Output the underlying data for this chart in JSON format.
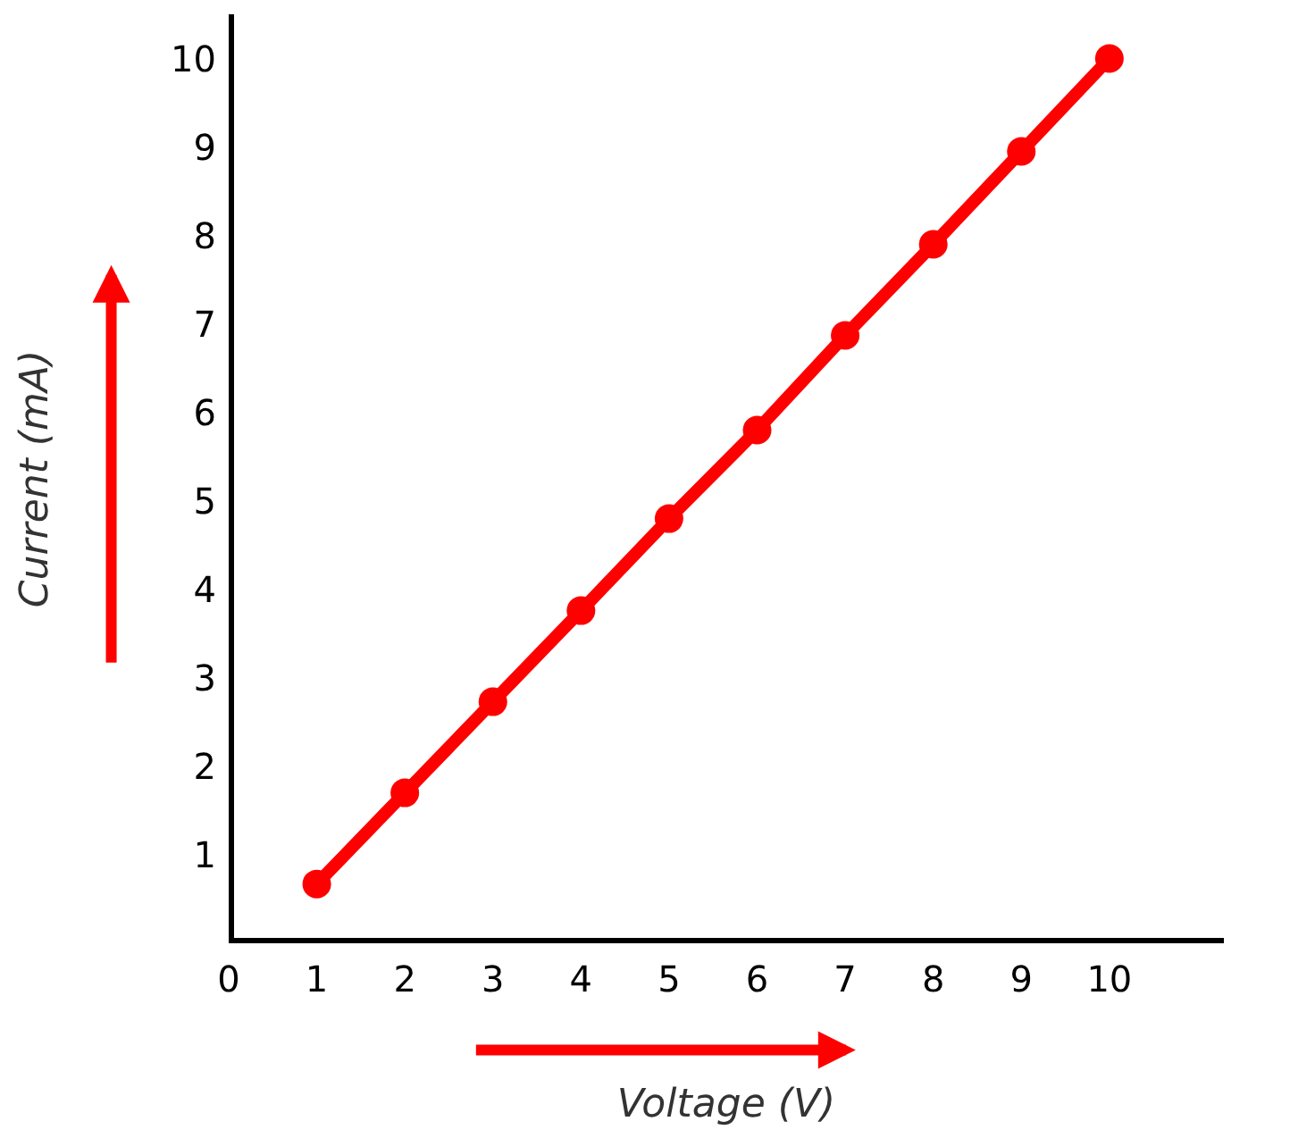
{
  "chart_data": {
    "type": "line",
    "xlabel": "Voltage (V)",
    "ylabel": "Current (mA)",
    "x": [
      1,
      2,
      3,
      4,
      5,
      6,
      7,
      8,
      9,
      10
    ],
    "series": [
      {
        "color": "#ff0000",
        "values": [
          0.67,
          1.7,
          2.73,
          3.76,
          4.8,
          5.8,
          6.87,
          7.9,
          8.95,
          10
        ]
      }
    ],
    "xlim": [
      0,
      11.3
    ],
    "ylim": [
      0,
      10.5
    ],
    "xticks": [
      0,
      1,
      2,
      3,
      4,
      5,
      6,
      7,
      8,
      9,
      10
    ],
    "yticks": [
      1,
      2,
      3,
      4,
      5,
      6,
      7,
      8,
      9,
      10
    ],
    "grid": false,
    "legend": false,
    "marker": "circle",
    "line_style": "solid"
  }
}
